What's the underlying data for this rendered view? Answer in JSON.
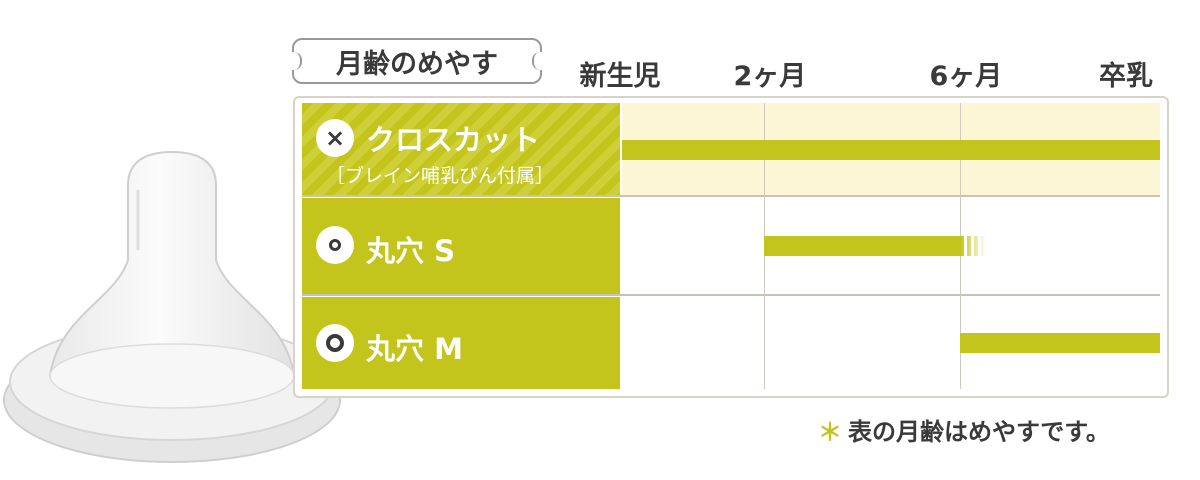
{
  "title": "月齢のめやす",
  "months": [
    "新生児",
    "2ヶ月",
    "6ヶ月",
    "卒乳"
  ],
  "footnote": {
    "mark": "＊",
    "text": "表の月齢はめやすです。"
  },
  "rows": [
    {
      "icon": "×",
      "name": "クロスカット",
      "sub": "［ブレイン哺乳びん付属］"
    },
    {
      "icon": "ring-small",
      "name": "丸穴 S"
    },
    {
      "icon": "ring-large",
      "name": "丸穴 M"
    }
  ],
  "colors": {
    "accent": "#c3c41c",
    "cross_bg": "#fdf6d4",
    "text": "#3a3a3a"
  },
  "chart_data": {
    "type": "gantt",
    "title": "月齢のめやす",
    "stages": [
      "新生児",
      "2ヶ月",
      "6ヶ月",
      "卒乳"
    ],
    "series": [
      {
        "name": "クロスカット",
        "start": "新生児",
        "end": "卒乳"
      },
      {
        "name": "丸穴 S",
        "start": "2ヶ月",
        "end": "6ヶ月",
        "fades_after_end": true
      },
      {
        "name": "丸穴 M",
        "start": "6ヶ月",
        "end": "卒乳"
      }
    ]
  }
}
